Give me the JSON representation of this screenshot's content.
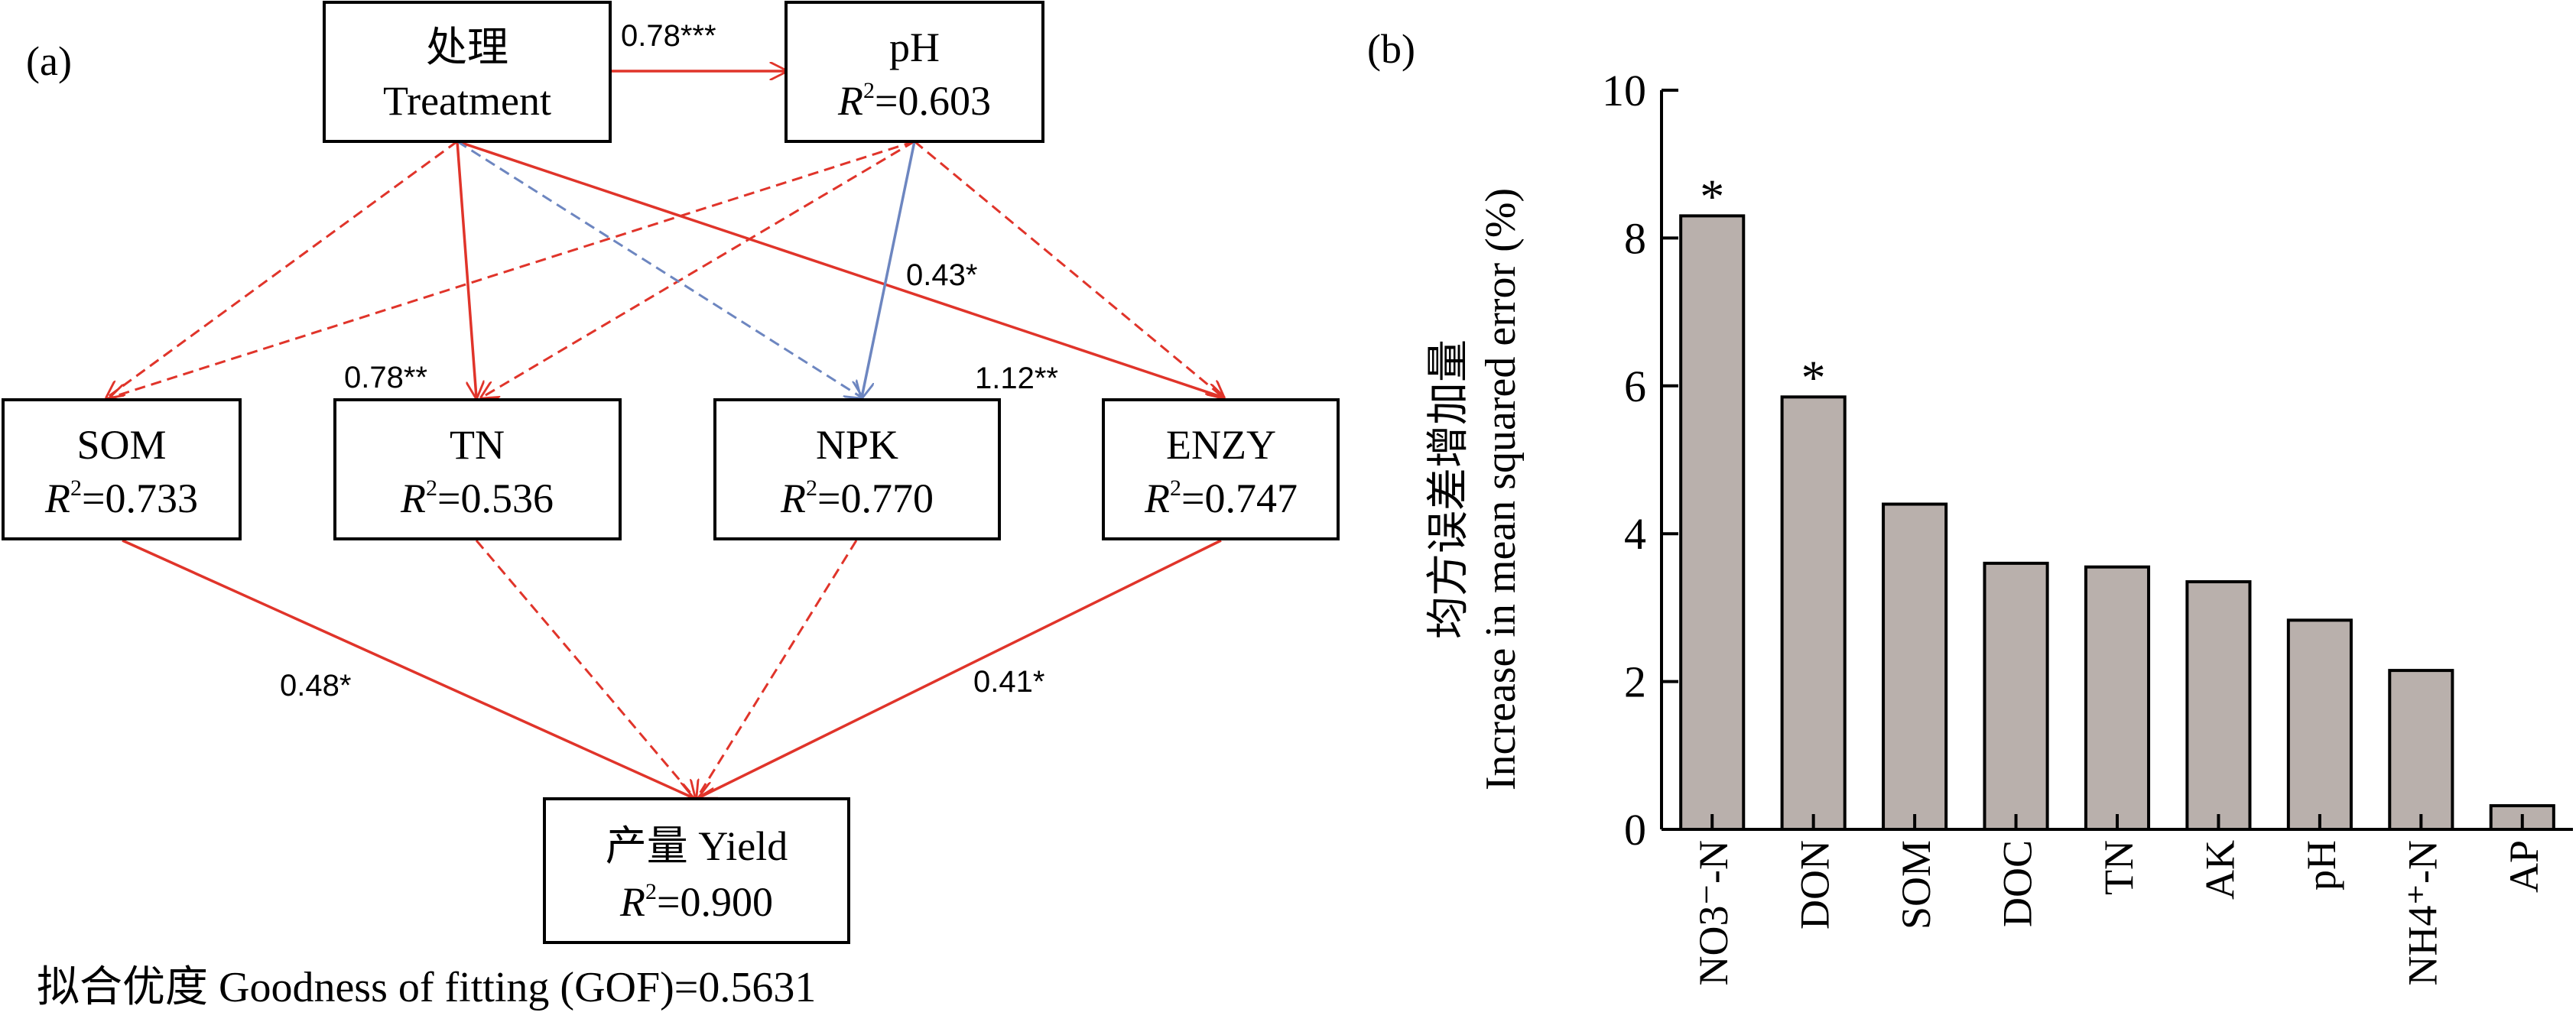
{
  "panel_a": {
    "label": "(a)",
    "nodes": {
      "treatment": {
        "line1": "处理",
        "line2": "Treatment"
      },
      "ph": {
        "line1": "pH",
        "r_italic": "R",
        "r_sup": "2",
        "r_value": "=0.603"
      },
      "som": {
        "line1": "SOM",
        "r_italic": "R",
        "r_sup": "2",
        "r_value": "=0.733"
      },
      "tn": {
        "line1": "TN",
        "r_italic": "R",
        "r_sup": "2",
        "r_value": "=0.536"
      },
      "npk": {
        "line1": "NPK",
        "r_italic": "R",
        "r_sup": "2",
        "r_value": "=0.770"
      },
      "enzy": {
        "line1": "ENZY",
        "r_italic": "R",
        "r_sup": "2",
        "r_value": "=0.747"
      },
      "yield": {
        "line1": "产量 Yield",
        "r_italic": "R",
        "r_sup": "2",
        "r_value": "=0.900"
      }
    },
    "path_labels": {
      "treatment_ph": "0.78***",
      "treatment_tn": "0.78**",
      "treatment_enzy": "1.12**",
      "ph_npk": "0.43*",
      "som_yield": "0.48*",
      "enzy_yield": "0.41*"
    },
    "gof": "拟合优度 Goodness of fitting (GOF)=0.5631",
    "colors": {
      "positive": "#e0342a",
      "negative": "#6d86c0"
    }
  },
  "panel_b": {
    "label": "(b)",
    "ylabel_cn": "均方误差增加量",
    "ylabel_en": "Increase in mean squared error (%)"
  },
  "chart_data": {
    "type": "bar",
    "categories": [
      "NO3⁻-N",
      "DON",
      "SOM",
      "DOC",
      "TN",
      "AK",
      "pH",
      "NH4⁺-N",
      "AP"
    ],
    "values": [
      8.3,
      5.85,
      4.4,
      3.6,
      3.55,
      3.35,
      2.83,
      2.15,
      0.32
    ],
    "significance": [
      "*",
      "*",
      "",
      "",
      "",
      "",
      "",
      "",
      ""
    ],
    "ylim": [
      0,
      10
    ],
    "yticks": [
      "0",
      "2",
      "4",
      "6",
      "8",
      "10"
    ],
    "bar_color": "#b9b0ac",
    "ylabel": "均方误差增加量 Increase in mean squared error (%)"
  }
}
